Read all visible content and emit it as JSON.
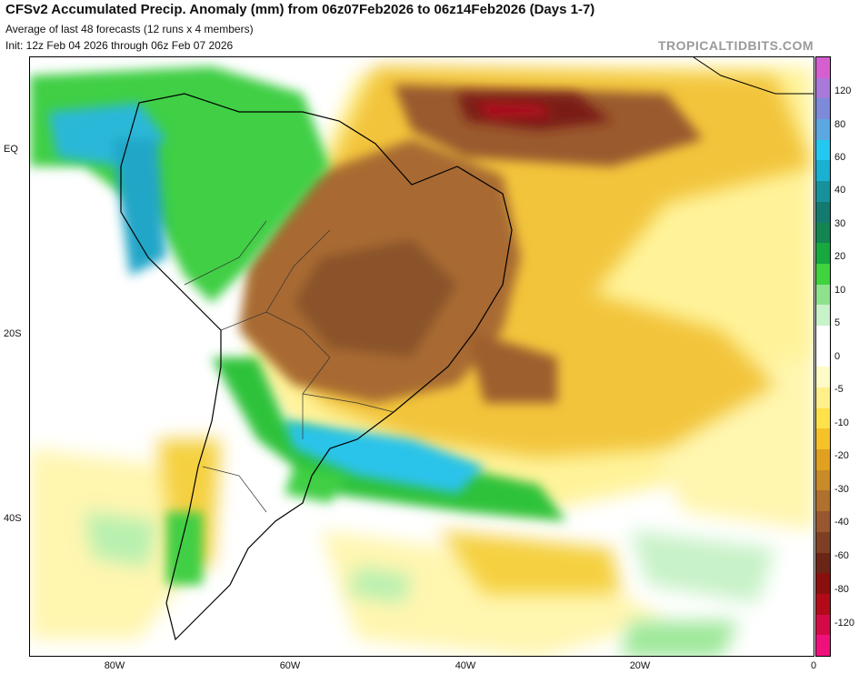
{
  "header": {
    "title": "CFSv2 Accumulated Precip. Anomaly (mm) from 06z07Feb2026 to 06z14Feb2026 (Days 1-7)",
    "subtitle": "Average of last 48 forecasts (12 runs x 4 members)",
    "init": "Init: 12z Feb 04 2026 through 06z Feb 07 2026"
  },
  "watermark": "TROPICALTIDBITS.COM",
  "axes": {
    "lat_labels": [
      "EQ",
      "20S",
      "40S"
    ],
    "lon_labels": [
      "80W",
      "60W",
      "40W",
      "20W",
      "0"
    ]
  },
  "colorbar": {
    "labels": [
      "120",
      "80",
      "60",
      "40",
      "30",
      "20",
      "10",
      "5",
      "0",
      "-5",
      "-10",
      "-20",
      "-30",
      "-40",
      "-60",
      "-80",
      "-120"
    ],
    "colors": [
      "#d65fd0",
      "#a879d8",
      "#7c8ad9",
      "#5ba8e0",
      "#22c8f0",
      "#1ab0d0",
      "#17929c",
      "#137a70",
      "#128552",
      "#18a840",
      "#3fd33f",
      "#8ee28e",
      "#c8f2c8",
      "#ffffff",
      "#ffffff",
      "#fffbc8",
      "#fff08a",
      "#ffe24a",
      "#f5c227",
      "#e0a020",
      "#c98a28",
      "#b0702e",
      "#98572e",
      "#7e4024",
      "#6b2516",
      "#8a0f0f",
      "#b30a1a",
      "#d40a47",
      "#f0107c"
    ]
  },
  "map": {
    "description_colors": {
      "dry_dark": "#7a4a2a",
      "dry_brown": "#a06a35",
      "dry_orange": "#d29a2a",
      "dry_yellow": "#f2d03a",
      "dry_light": "#fff39a",
      "wet_light": "#b8f0b0",
      "wet_green": "#2fc23a",
      "wet_teal": "#1aa8b8",
      "wet_cyan": "#2cc3ea"
    }
  }
}
